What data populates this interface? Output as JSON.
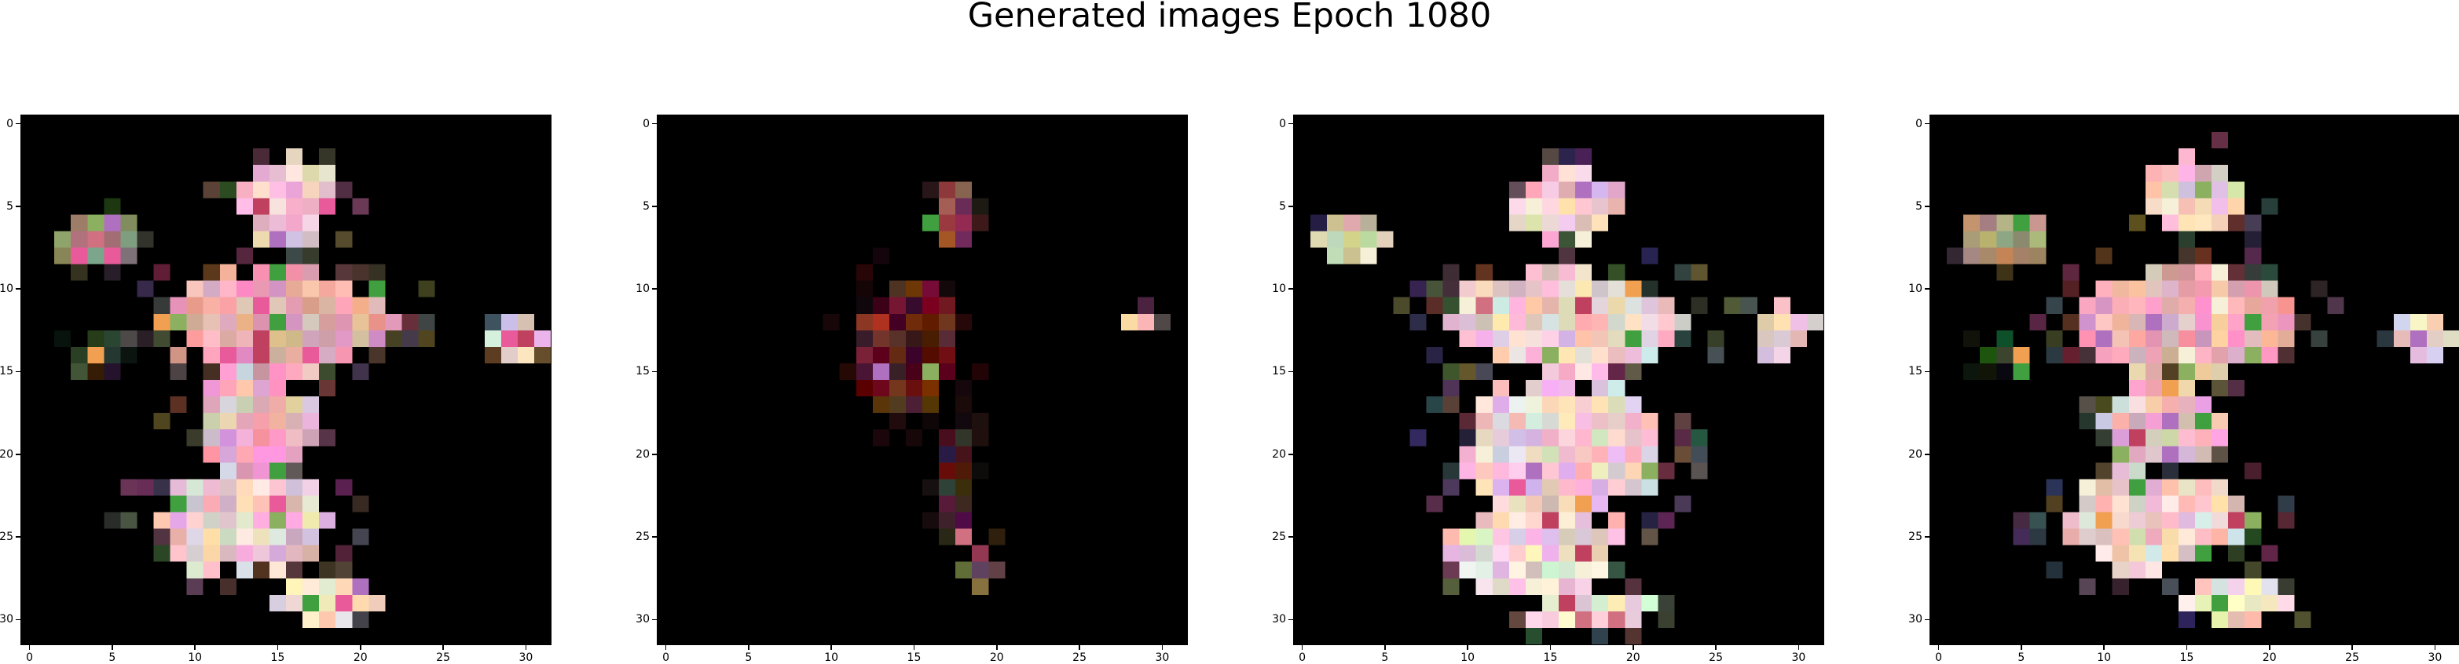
{
  "figure": {
    "title": "Generated images Epoch 1080",
    "background": "#ffffff",
    "image_background": "#000000"
  },
  "panels": [
    {
      "name": "image-1",
      "xtick_labels": [
        "0",
        "5",
        "10",
        "15",
        "20",
        "25",
        "30"
      ],
      "ytick_labels": [
        "0",
        "5",
        "10",
        "15",
        "20",
        "25",
        "30"
      ],
      "blobs": [
        {
          "cx": 15.5,
          "cy": 4.5,
          "rx": 4.2,
          "ry": 3.5,
          "color": "#f2c6c8"
        },
        {
          "cx": 15.0,
          "cy": 12.0,
          "rx": 9.0,
          "ry": 4.5,
          "color": "#e9a7a8"
        },
        {
          "cx": 4.0,
          "cy": 7.0,
          "rx": 3.5,
          "ry": 2.0,
          "color": "#9a8a6a"
        },
        {
          "cx": 13.5,
          "cy": 18.0,
          "rx": 5.0,
          "ry": 4.5,
          "color": "#e8b4be"
        },
        {
          "cx": 13.0,
          "cy": 24.0,
          "rx": 7.5,
          "ry": 4.2,
          "color": "#ebc8c8"
        },
        {
          "cx": 18.0,
          "cy": 29.0,
          "rx": 4.5,
          "ry": 1.8,
          "color": "#f3dccc"
        },
        {
          "cx": 29.5,
          "cy": 13.0,
          "rx": 2.6,
          "ry": 1.8,
          "color": "#e9d6d4"
        },
        {
          "cx": 4.0,
          "cy": 14.0,
          "rx": 2.5,
          "ry": 1.5,
          "color": "#2d3326"
        }
      ]
    },
    {
      "name": "image-2",
      "xtick_labels": [
        "0",
        "5",
        "10",
        "15",
        "20",
        "25",
        "30"
      ],
      "ytick_labels": [
        "0",
        "5",
        "10",
        "15",
        "20",
        "25",
        "30"
      ],
      "blobs": [
        {
          "cx": 17.5,
          "cy": 5.5,
          "rx": 2.0,
          "ry": 2.5,
          "color": "#8b4a44"
        },
        {
          "cx": 14.5,
          "cy": 13.5,
          "rx": 4.5,
          "ry": 5.5,
          "color": "#5a1a1c"
        },
        {
          "cx": 12.5,
          "cy": 12.0,
          "rx": 1.6,
          "ry": 1.5,
          "color": "#a8202a"
        },
        {
          "cx": 17.5,
          "cy": 22.0,
          "rx": 2.0,
          "ry": 5.0,
          "color": "#4a2828"
        },
        {
          "cx": 19.0,
          "cy": 27.0,
          "rx": 1.5,
          "ry": 2.5,
          "color": "#7a5050"
        },
        {
          "cx": 28.5,
          "cy": 12.0,
          "rx": 1.5,
          "ry": 1.5,
          "color": "#d8d0a8"
        }
      ]
    },
    {
      "name": "image-3",
      "xtick_labels": [
        "0",
        "5",
        "10",
        "15",
        "20",
        "25",
        "30"
      ],
      "ytick_labels": [
        "0",
        "5",
        "10",
        "15",
        "20",
        "25",
        "30"
      ],
      "blobs": [
        {
          "cx": 16.0,
          "cy": 5.0,
          "rx": 4.5,
          "ry": 3.0,
          "color": "#f0c8cc"
        },
        {
          "cx": 16.0,
          "cy": 12.0,
          "rx": 9.5,
          "ry": 4.5,
          "color": "#eec8c8"
        },
        {
          "cx": 3.0,
          "cy": 7.0,
          "rx": 3.0,
          "ry": 1.8,
          "color": "#d8c0a8"
        },
        {
          "cx": 15.5,
          "cy": 20.0,
          "rx": 8.0,
          "ry": 6.0,
          "color": "#edd0d2"
        },
        {
          "cx": 14.0,
          "cy": 26.0,
          "rx": 7.0,
          "ry": 3.5,
          "color": "#efd4d0"
        },
        {
          "cx": 17.5,
          "cy": 29.5,
          "rx": 5.0,
          "ry": 1.8,
          "color": "#f2dcd0"
        },
        {
          "cx": 29.0,
          "cy": 12.5,
          "rx": 2.8,
          "ry": 2.2,
          "color": "#ecd4c8"
        }
      ]
    },
    {
      "name": "image-4",
      "xtick_labels": [
        "0",
        "5",
        "10",
        "15",
        "20",
        "25",
        "30"
      ],
      "ytick_labels": [
        "0",
        "5",
        "10",
        "15",
        "20",
        "25",
        "30"
      ],
      "blobs": [
        {
          "cx": 15.5,
          "cy": 4.5,
          "rx": 4.2,
          "ry": 3.5,
          "color": "#f2c6c8"
        },
        {
          "cx": 15.0,
          "cy": 12.0,
          "rx": 9.0,
          "ry": 4.5,
          "color": "#ebb0ae"
        },
        {
          "cx": 4.0,
          "cy": 7.0,
          "rx": 3.5,
          "ry": 2.0,
          "color": "#a89a78"
        },
        {
          "cx": 13.5,
          "cy": 18.0,
          "rx": 5.0,
          "ry": 4.5,
          "color": "#e8bcc4"
        },
        {
          "cx": 13.0,
          "cy": 24.0,
          "rx": 7.5,
          "ry": 4.2,
          "color": "#ecccc8"
        },
        {
          "cx": 18.0,
          "cy": 29.0,
          "rx": 4.5,
          "ry": 1.8,
          "color": "#f3dccc"
        },
        {
          "cx": 29.5,
          "cy": 13.0,
          "rx": 2.6,
          "ry": 1.8,
          "color": "#e9d6d4"
        },
        {
          "cx": 4.0,
          "cy": 14.0,
          "rx": 2.5,
          "ry": 1.5,
          "color": "#2d3326"
        }
      ]
    }
  ]
}
